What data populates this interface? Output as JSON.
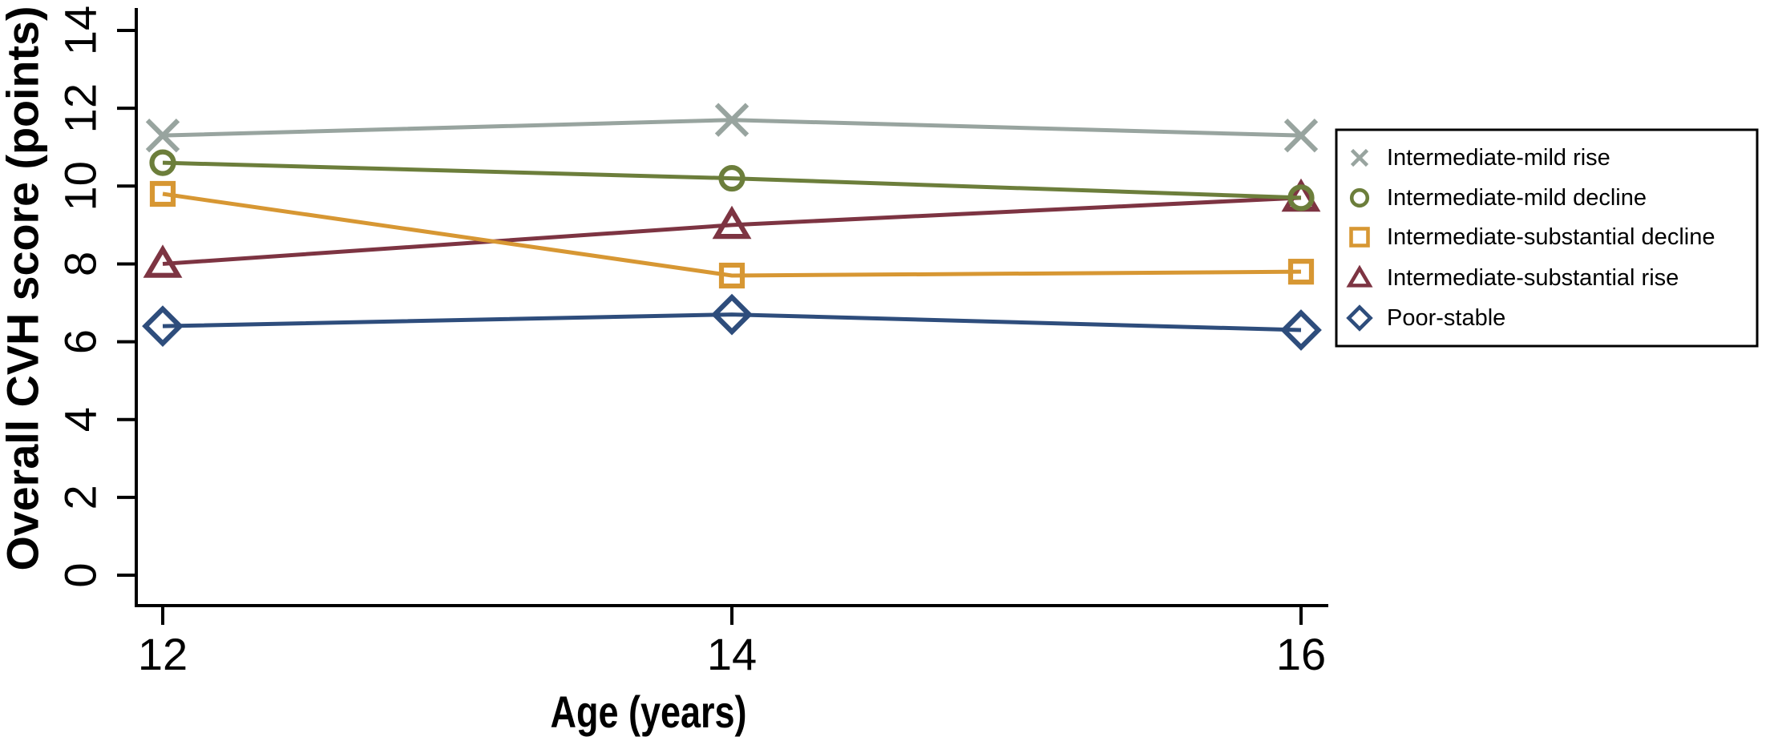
{
  "figure": {
    "background": "#ffffff",
    "axis_color": "#000000"
  },
  "chart_data": {
    "type": "line",
    "title": "",
    "xlabel": "Age (years)",
    "ylabel": "Overall CVH score (points)",
    "x": [
      12,
      14,
      16
    ],
    "xtick_labels": [
      "12",
      "14",
      "16"
    ],
    "ytick_values": [
      0,
      2,
      4,
      6,
      8,
      10,
      12,
      14
    ],
    "ylim": [
      0,
      14.6
    ],
    "xlim": [
      11.9,
      16.1
    ],
    "grid": "off",
    "legend_position": "right-outside",
    "series": [
      {
        "name": "Intermediate-mild rise",
        "marker": "x",
        "color": "#98a49f",
        "values": [
          11.3,
          11.7,
          11.3
        ]
      },
      {
        "name": "Intermediate-mild decline",
        "marker": "circle",
        "color": "#6c7e3b",
        "values": [
          10.6,
          10.2,
          9.7
        ]
      },
      {
        "name": "Intermediate-substantial decline",
        "marker": "square",
        "color": "#d79733",
        "values": [
          9.8,
          7.7,
          7.8
        ]
      },
      {
        "name": "Intermediate-substantial rise",
        "marker": "triangle",
        "color": "#7d3442",
        "values": [
          8.0,
          9.0,
          9.7
        ]
      },
      {
        "name": "Poor-stable",
        "marker": "diamond",
        "color": "#2e4d7c",
        "values": [
          6.4,
          6.7,
          6.3
        ]
      }
    ]
  }
}
